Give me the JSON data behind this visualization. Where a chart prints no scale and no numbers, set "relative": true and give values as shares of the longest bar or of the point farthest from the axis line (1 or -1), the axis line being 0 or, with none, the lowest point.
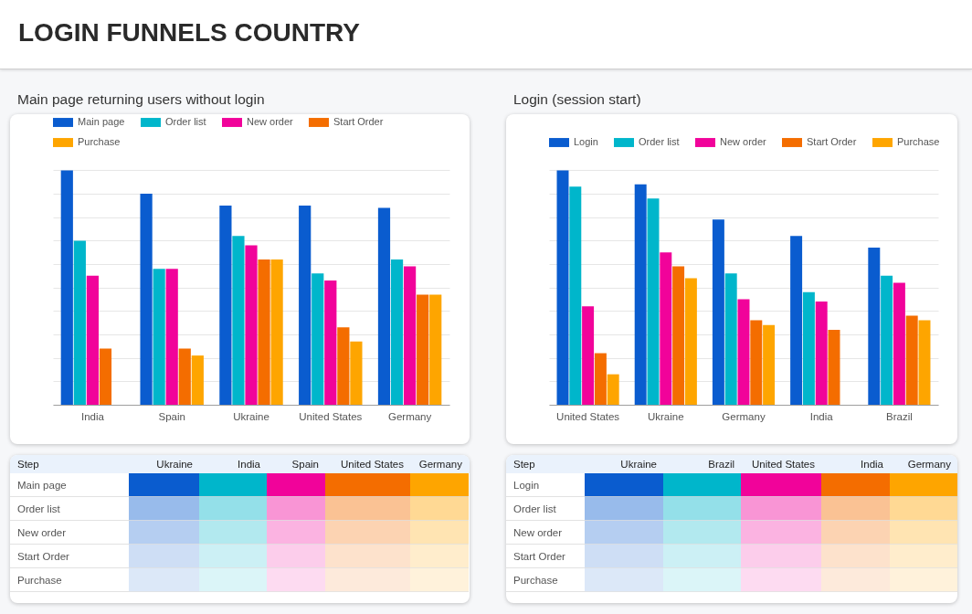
{
  "chart_data": [
    {
      "type": "other",
      "title": "LOGIN FUNNELS COUNTRY"
    },
    {
      "type": "bar",
      "title": "Main page returning users without login",
      "categories": [
        "India",
        "Spain",
        "Ukraine",
        "United States",
        "Germany"
      ],
      "relative": true,
      "legend": "top",
      "grid": "y",
      "tick_labels": "x",
      "series": [
        {
          "name": "Main page",
          "color": "#0a5ccf",
          "values": [
            1,
            0.9,
            0.85,
            0.85,
            0.84
          ]
        },
        {
          "name": "Order list",
          "color": "#00b6cb",
          "values": [
            0.7,
            0.58,
            0.72,
            0.56,
            0.62
          ]
        },
        {
          "name": "New order",
          "color": "#f1039a",
          "values": [
            0.55,
            0.58,
            0.68,
            0.53,
            0.59
          ]
        },
        {
          "name": "Start Order",
          "color": "#f46d00",
          "values": [
            0.24,
            0.24,
            0.62,
            0.33,
            0.47
          ]
        },
        {
          "name": "Purchase",
          "color": "#fea500",
          "values": [
            null,
            0.21,
            0.62,
            0.27,
            0.47
          ]
        }
      ]
    },
    {
      "type": "bar",
      "title": "Login (session start)",
      "categories": [
        "United States",
        "Ukraine",
        "Germany",
        "India",
        "Brazil"
      ],
      "relative": true,
      "legend": "top",
      "grid": "y",
      "tick_labels": "x",
      "series": [
        {
          "name": "Login",
          "color": "#0a5ccf",
          "values": [
            1,
            0.94,
            0.79,
            0.72,
            0.67
          ]
        },
        {
          "name": "Order list",
          "color": "#00b6cb",
          "values": [
            0.93,
            0.88,
            0.56,
            0.48,
            0.55
          ]
        },
        {
          "name": "New order",
          "color": "#f1039a",
          "values": [
            0.42,
            0.65,
            0.45,
            0.44,
            0.52
          ]
        },
        {
          "name": "Start Order",
          "color": "#f46d00",
          "values": [
            0.22,
            0.59,
            0.36,
            0.32,
            0.38
          ]
        },
        {
          "name": "Purchase",
          "color": "#fea500",
          "values": [
            0.13,
            0.54,
            0.34,
            null,
            0.36
          ]
        }
      ]
    },
    {
      "type": "other",
      "ylabel": "Step",
      "categories": [
        "Ukraine",
        "India",
        "Spain",
        "United States",
        "Germany"
      ],
      "y_categories": [
        "Main page",
        "Order list",
        "New order",
        "Start Order",
        "Purchase"
      ]
    },
    {
      "type": "other",
      "ylabel": "Step",
      "categories": [
        "Ukraine",
        "Brazil",
        "United States",
        "India",
        "Germany"
      ],
      "y_categories": [
        "Login",
        "Order list",
        "New order",
        "Start Order",
        "Purchase"
      ]
    }
  ]
}
